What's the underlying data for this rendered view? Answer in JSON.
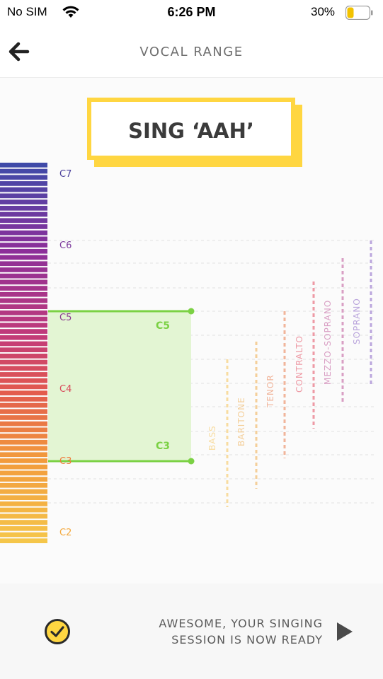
{
  "status_bar": {
    "carrier": "No SIM",
    "time": "6:26 PM",
    "battery_percent": "30%",
    "battery_level": 0.3
  },
  "header": {
    "title": "VOCAL RANGE",
    "back_icon": "arrow-left-icon"
  },
  "banner": {
    "text": "SING ‘AAH’"
  },
  "note_labels": [
    {
      "note": "C7",
      "color": "#4a3f9c"
    },
    {
      "note": "C6",
      "color": "#7c3a9c"
    },
    {
      "note": "C5",
      "color": "#8a3d8f"
    },
    {
      "note": "C4",
      "color": "#d94a5a"
    },
    {
      "note": "C3",
      "color": "#ef7a3a"
    },
    {
      "note": "C2",
      "color": "#f4a93e"
    }
  ],
  "detected_range": {
    "high": "C5",
    "low": "C3",
    "fill": "#e3f5d3",
    "line": "#7bd144"
  },
  "voice_types": [
    {
      "name": "BASS",
      "color": "#f8dca0"
    },
    {
      "name": "BARITONE",
      "color": "#f4cf9a"
    },
    {
      "name": "TENOR",
      "color": "#f1b59b"
    },
    {
      "name": "CONTRALTO",
      "color": "#ee9aa5"
    },
    {
      "name": "MEZZO-SOPRANO",
      "color": "#d99fc4"
    },
    {
      "name": "SOPRANO",
      "color": "#bba6dd"
    }
  ],
  "footer": {
    "message_line1": "AWESOME, YOUR SINGING",
    "message_line2": "SESSION IS NOW READY",
    "check_icon": "check-circle-icon",
    "next_icon": "play-arrow-icon",
    "accent": "#ffd641"
  }
}
